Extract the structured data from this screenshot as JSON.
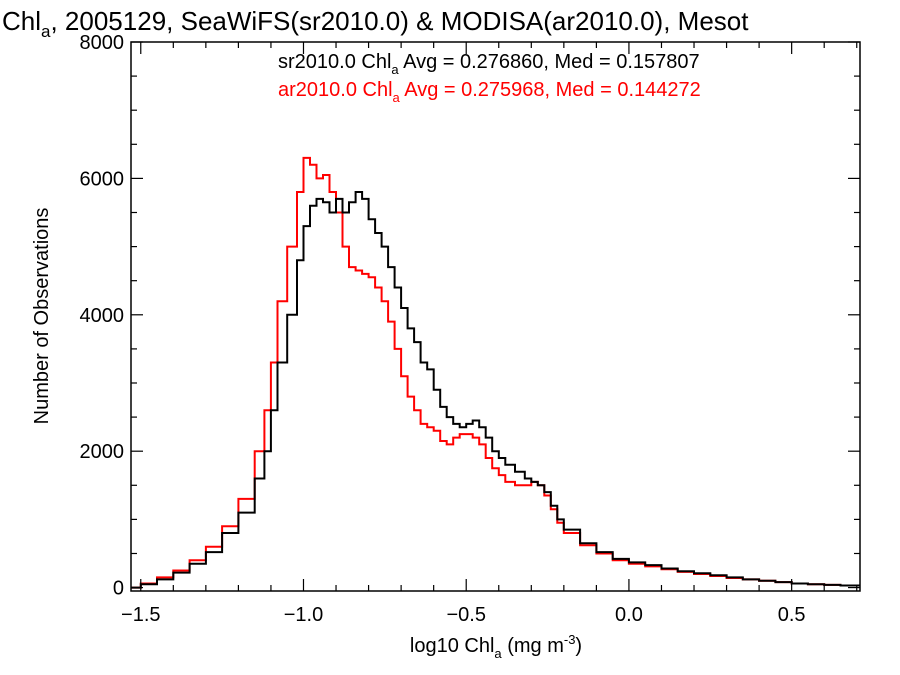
{
  "chart_data": {
    "type": "line",
    "title": {
      "prefix": "Chl",
      "sub": "a",
      "rest": ", 2005129, SeaWiFS(sr2010.0) & MODISA(ar2010.0), Mesot"
    },
    "xlabel": {
      "prefix": "log10 Chl",
      "sub": "a",
      "mid": " (mg m",
      "sup": "-3",
      "suffix": ")"
    },
    "ylabel": "Number of Observations",
    "xlim": [
      -1.53,
      0.71
    ],
    "ylim": [
      -50,
      8000
    ],
    "x_ticks": [
      -1.5,
      -1.0,
      -0.5,
      0.0,
      0.5
    ],
    "x_tick_labels": [
      "−1.5",
      "−1.0",
      "−0.5",
      "0.0",
      "0.5"
    ],
    "y_ticks": [
      0,
      2000,
      4000,
      6000,
      8000
    ],
    "y_tick_labels": [
      "0",
      "2000",
      "4000",
      "6000",
      "8000"
    ],
    "x_minor_step": 0.1,
    "y_minor_step": 500,
    "grid": false,
    "legend_placement": "top",
    "annotations": [
      {
        "color": "#000000",
        "prefix": "sr2010.0 Chl",
        "sub": "a",
        "rest": " Avg = 0.276860, Med = 0.157807"
      },
      {
        "color": "#ff0000",
        "prefix": "ar2010.0 Chl",
        "sub": "a",
        "rest": " Avg = 0.275968, Med = 0.144272"
      }
    ],
    "series": [
      {
        "color": "#000000",
        "x": [
          -1.53,
          -1.5,
          -1.45,
          -1.4,
          -1.35,
          -1.3,
          -1.25,
          -1.2,
          -1.15,
          -1.12,
          -1.1,
          -1.08,
          -1.05,
          -1.02,
          -1.0,
          -0.98,
          -0.96,
          -0.94,
          -0.92,
          -0.9,
          -0.88,
          -0.86,
          -0.84,
          -0.82,
          -0.8,
          -0.78,
          -0.76,
          -0.74,
          -0.72,
          -0.7,
          -0.68,
          -0.66,
          -0.64,
          -0.62,
          -0.6,
          -0.58,
          -0.56,
          -0.54,
          -0.52,
          -0.5,
          -0.48,
          -0.46,
          -0.44,
          -0.42,
          -0.4,
          -0.38,
          -0.35,
          -0.32,
          -0.3,
          -0.28,
          -0.26,
          -0.24,
          -0.22,
          -0.2,
          -0.15,
          -0.1,
          -0.05,
          0.0,
          0.05,
          0.1,
          0.15,
          0.2,
          0.25,
          0.3,
          0.35,
          0.4,
          0.45,
          0.5,
          0.55,
          0.6,
          0.65,
          0.71
        ],
        "y": [
          0,
          50,
          120,
          220,
          350,
          520,
          800,
          1100,
          1600,
          2000,
          2600,
          3300,
          4000,
          4800,
          5300,
          5600,
          5700,
          5650,
          5500,
          5700,
          5500,
          5650,
          5800,
          5700,
          5400,
          5200,
          5000,
          4700,
          4400,
          4100,
          3800,
          3600,
          3300,
          3200,
          2900,
          2650,
          2500,
          2400,
          2350,
          2400,
          2450,
          2350,
          2200,
          2000,
          1900,
          1800,
          1700,
          1600,
          1550,
          1500,
          1400,
          1200,
          1000,
          850,
          650,
          520,
          420,
          370,
          330,
          280,
          240,
          210,
          180,
          150,
          120,
          100,
          80,
          60,
          50,
          40,
          30,
          25
        ]
      },
      {
        "color": "#ff0000",
        "x": [
          -1.53,
          -1.5,
          -1.45,
          -1.4,
          -1.35,
          -1.3,
          -1.25,
          -1.2,
          -1.15,
          -1.12,
          -1.1,
          -1.08,
          -1.05,
          -1.02,
          -1.0,
          -0.98,
          -0.96,
          -0.94,
          -0.92,
          -0.9,
          -0.88,
          -0.86,
          -0.84,
          -0.82,
          -0.8,
          -0.78,
          -0.76,
          -0.74,
          -0.72,
          -0.7,
          -0.68,
          -0.66,
          -0.64,
          -0.62,
          -0.6,
          -0.58,
          -0.56,
          -0.54,
          -0.52,
          -0.5,
          -0.48,
          -0.46,
          -0.44,
          -0.42,
          -0.4,
          -0.38,
          -0.35,
          -0.32,
          -0.3,
          -0.28,
          -0.26,
          -0.24,
          -0.22,
          -0.2,
          -0.15,
          -0.1,
          -0.05,
          0.0,
          0.05,
          0.1,
          0.15,
          0.2,
          0.25,
          0.3,
          0.35,
          0.4,
          0.45,
          0.5,
          0.55,
          0.6,
          0.65,
          0.71
        ],
        "y": [
          0,
          60,
          150,
          250,
          400,
          600,
          900,
          1300,
          2000,
          2600,
          3300,
          4200,
          5000,
          5800,
          6300,
          6200,
          6000,
          6050,
          5800,
          5500,
          5000,
          4700,
          4650,
          4600,
          4550,
          4400,
          4200,
          3900,
          3500,
          3100,
          2800,
          2600,
          2400,
          2350,
          2300,
          2150,
          2100,
          2200,
          2250,
          2250,
          2200,
          2100,
          1900,
          1750,
          1650,
          1550,
          1500,
          1500,
          1550,
          1500,
          1350,
          1150,
          950,
          800,
          620,
          500,
          400,
          350,
          310,
          270,
          230,
          200,
          170,
          140,
          120,
          100,
          80,
          60,
          50,
          40,
          30,
          25
        ]
      }
    ]
  }
}
